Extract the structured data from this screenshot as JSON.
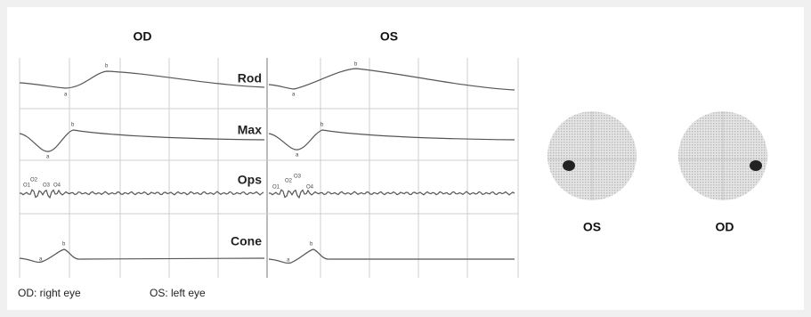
{
  "header": {
    "od": "OD",
    "os": "OS"
  },
  "rows": [
    {
      "label": "Rod"
    },
    {
      "label": "Max"
    },
    {
      "label": "Ops"
    },
    {
      "label": "Cone"
    }
  ],
  "peak_labels": {
    "a": "a",
    "b": "b",
    "o1": "O1",
    "o2": "O2",
    "o3": "O3",
    "o4": "O4"
  },
  "legend": {
    "od": "OD: right eye",
    "os": "OS: left eye"
  },
  "visual_fields": [
    {
      "label": "OS"
    },
    {
      "label": "OD"
    }
  ]
}
